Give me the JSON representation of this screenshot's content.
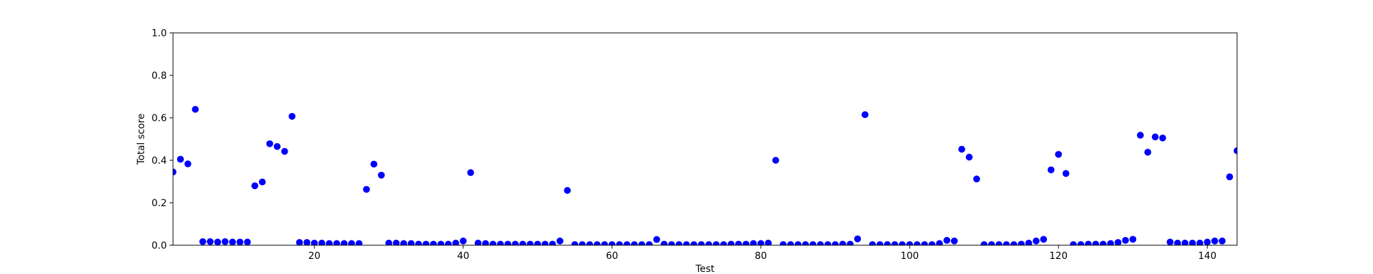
{
  "chart_data": {
    "type": "scatter",
    "title": "",
    "xlabel": "Test",
    "ylabel": "Total score",
    "xlim": [
      1,
      144
    ],
    "ylim": [
      0,
      1.0
    ],
    "xticks": [
      20,
      40,
      60,
      80,
      100,
      120,
      140
    ],
    "yticks": [
      0.0,
      0.2,
      0.4,
      0.6,
      0.8,
      1.0
    ],
    "xtick_labels": [
      "20",
      "40",
      "60",
      "80",
      "100",
      "120",
      "140"
    ],
    "ytick_labels": [
      "0.0",
      "0.2",
      "0.4",
      "0.6",
      "0.8",
      "1.0"
    ],
    "grid": false,
    "legend": false,
    "marker_color": "#0000ff",
    "series": [
      {
        "x": [
          1,
          2,
          3,
          4,
          5,
          6,
          7,
          8,
          9,
          10,
          11,
          12,
          13,
          14,
          15,
          16,
          17,
          18,
          19,
          20,
          21,
          22,
          23,
          24,
          25,
          26,
          27,
          28,
          29,
          30,
          31,
          32,
          33,
          34,
          35,
          36,
          37,
          38,
          39,
          40,
          41,
          42,
          43,
          44,
          45,
          46,
          47,
          48,
          49,
          50,
          51,
          52,
          53,
          54,
          55,
          56,
          57,
          58,
          59,
          60,
          61,
          62,
          63,
          64,
          65,
          66,
          67,
          68,
          69,
          70,
          71,
          72,
          73,
          74,
          75,
          76,
          77,
          78,
          79,
          80,
          81,
          82,
          83,
          84,
          85,
          86,
          87,
          88,
          89,
          90,
          91,
          92,
          93,
          94,
          95,
          96,
          97,
          98,
          99,
          100,
          101,
          102,
          103,
          104,
          105,
          106,
          107,
          108,
          109,
          110,
          111,
          112,
          113,
          114,
          115,
          116,
          117,
          118,
          119,
          120,
          121,
          122,
          123,
          124,
          125,
          126,
          127,
          128,
          129,
          130,
          131,
          132,
          133,
          134,
          135,
          136,
          137,
          138,
          139,
          140,
          141,
          142,
          143,
          144
        ],
        "y": [
          0.345,
          0.405,
          0.383,
          0.64,
          0.017,
          0.017,
          0.015,
          0.017,
          0.015,
          0.015,
          0.015,
          0.28,
          0.298,
          0.478,
          0.465,
          0.442,
          0.607,
          0.013,
          0.013,
          0.01,
          0.01,
          0.008,
          0.008,
          0.008,
          0.008,
          0.008,
          0.263,
          0.382,
          0.33,
          0.01,
          0.01,
          0.008,
          0.008,
          0.005,
          0.005,
          0.005,
          0.005,
          0.005,
          0.01,
          0.02,
          0.342,
          0.01,
          0.008,
          0.005,
          0.005,
          0.005,
          0.005,
          0.005,
          0.005,
          0.005,
          0.005,
          0.005,
          0.02,
          0.258,
          0.003,
          0.003,
          0.003,
          0.003,
          0.003,
          0.003,
          0.003,
          0.003,
          0.003,
          0.003,
          0.003,
          0.027,
          0.005,
          0.003,
          0.003,
          0.003,
          0.003,
          0.003,
          0.003,
          0.003,
          0.003,
          0.005,
          0.005,
          0.005,
          0.008,
          0.008,
          0.01,
          0.4,
          0.003,
          0.003,
          0.003,
          0.003,
          0.003,
          0.003,
          0.003,
          0.003,
          0.005,
          0.005,
          0.03,
          0.615,
          0.003,
          0.003,
          0.003,
          0.003,
          0.003,
          0.003,
          0.003,
          0.003,
          0.003,
          0.008,
          0.023,
          0.02,
          0.452,
          0.415,
          0.312,
          0.003,
          0.003,
          0.003,
          0.003,
          0.003,
          0.005,
          0.01,
          0.02,
          0.028,
          0.355,
          0.428,
          0.338,
          0.003,
          0.003,
          0.005,
          0.005,
          0.005,
          0.008,
          0.013,
          0.023,
          0.028,
          0.518,
          0.438,
          0.51,
          0.505,
          0.015,
          0.01,
          0.01,
          0.01,
          0.01,
          0.015,
          0.02,
          0.02,
          0.322,
          0.445
        ]
      }
    ]
  }
}
